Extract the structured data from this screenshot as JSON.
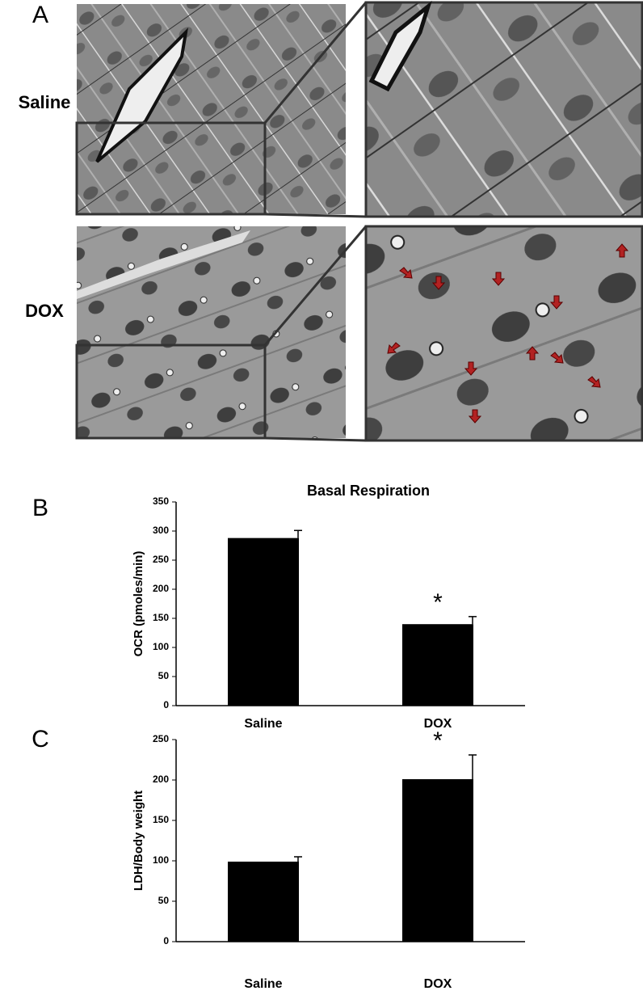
{
  "panel_a": {
    "label": "A",
    "row_labels": [
      "Saline",
      "DOX"
    ]
  },
  "chart_data": [
    {
      "type": "bar",
      "panel_label": "B",
      "title": "Basal Respiration",
      "ylabel": "OCR (pmoles/min)",
      "categories": [
        "Saline",
        "DOX"
      ],
      "values": [
        288,
        140
      ],
      "errors": [
        13,
        13
      ],
      "color": "#000000",
      "ylim": [
        0,
        350
      ],
      "yticks": [
        0,
        50,
        100,
        150,
        200,
        250,
        300,
        350
      ],
      "annotation": {
        "category": "DOX",
        "text": "*"
      }
    },
    {
      "type": "bar",
      "panel_label": "C",
      "ylabel": "LDH/Body weight",
      "categories": [
        "Saline",
        "DOX"
      ],
      "values": [
        99,
        201
      ],
      "errors": [
        6,
        30
      ],
      "color": "#000000",
      "ylim": [
        0,
        250
      ],
      "yticks": [
        0,
        50,
        100,
        150,
        200,
        250
      ],
      "annotation": {
        "category": "DOX",
        "text": "*"
      }
    }
  ]
}
